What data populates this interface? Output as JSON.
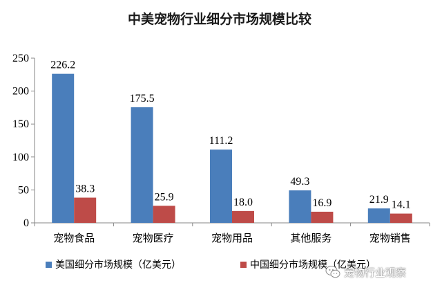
{
  "chart_data": {
    "type": "bar",
    "title": "中美宠物行业细分市场规模比较",
    "categories": [
      "宠物食品",
      "宠物医疗",
      "宠物用品",
      "其他服务",
      "宠物销售"
    ],
    "series": [
      {
        "name": "美国细分市场规模（亿美元）",
        "color": "#4a7ebb",
        "values": [
          226.2,
          175.5,
          111.2,
          49.3,
          21.9
        ],
        "labels": [
          "226.2",
          "175.5",
          "111.2",
          "49.3",
          "21.9"
        ]
      },
      {
        "name": "中国细分市场规模（亿美元）",
        "color": "#be4b48",
        "values": [
          38.3,
          25.9,
          18.0,
          16.9,
          14.1
        ],
        "labels": [
          "38.3",
          "25.9",
          "18.0",
          "16.9",
          "14.1"
        ]
      }
    ],
    "yticks": [
      "0",
      "50",
      "100",
      "150",
      "200",
      "250"
    ],
    "ylim": [
      0,
      250
    ],
    "xlabel": "",
    "ylabel": "",
    "grid": false,
    "legend_position": "bottom"
  },
  "watermark": {
    "text": "宠物行业观察",
    "icon": "wechat-logo-icon"
  }
}
